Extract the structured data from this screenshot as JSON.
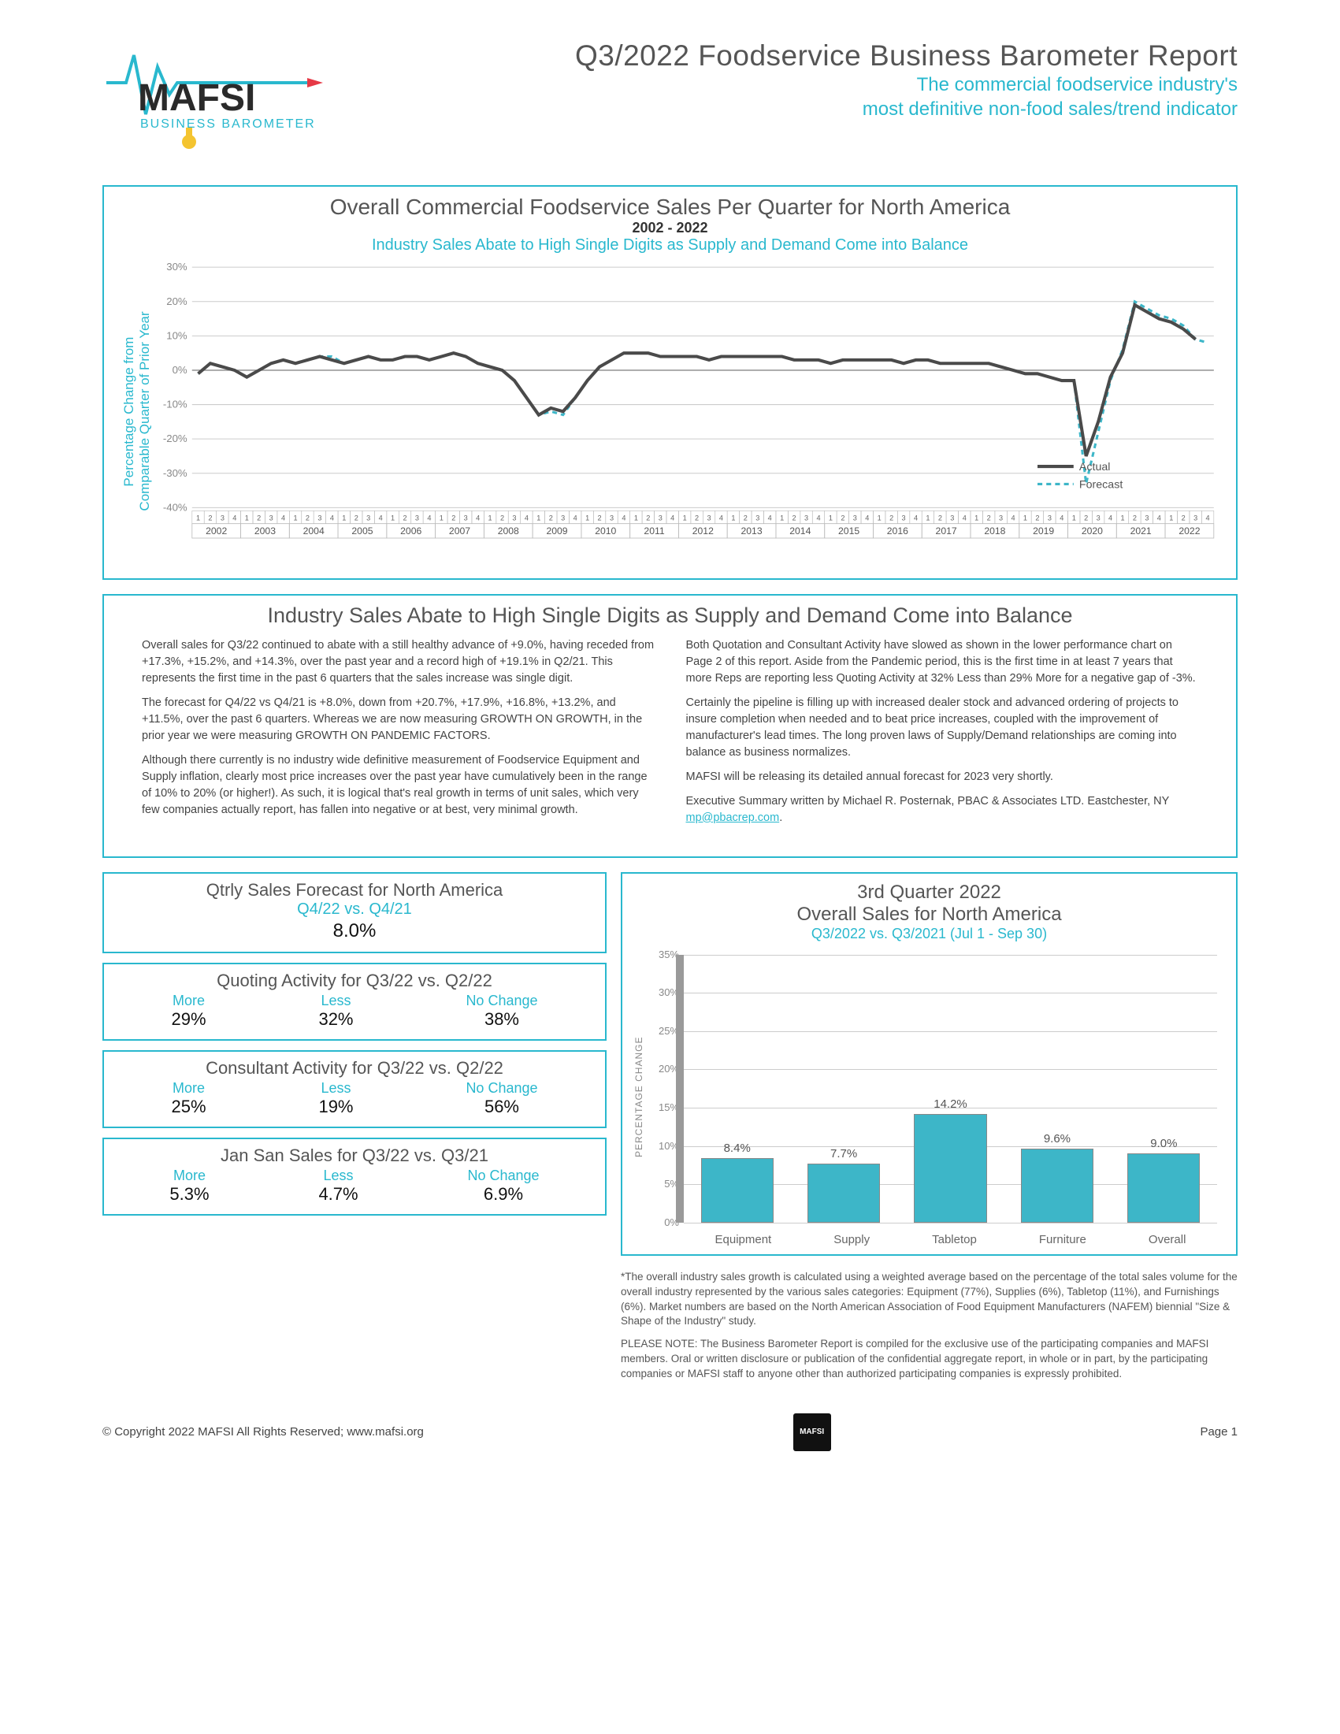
{
  "header": {
    "title": "Q3/2022 Foodservice Business Barometer Report",
    "subtitle1": "The commercial foodservice industry's",
    "subtitle2": "most definitive non-food sales/trend indicator",
    "logo_text": "MAFSI",
    "logo_sub": "BUSINESS BAROMETER"
  },
  "chart1": {
    "title": "Overall Commercial Foodservice Sales Per Quarter for North America",
    "years": "2002 - 2022",
    "subtitle": "Industry Sales Abate to High Single Digits as Supply and Demand Come into Balance",
    "ylabel": "Percentage Change from\nComparable Quarter of Prior Year",
    "ylim": [
      -40,
      30
    ],
    "ytick_step": 10,
    "year_range": [
      2002,
      2022
    ],
    "legend": {
      "actual": "Actual",
      "forecast": "Forecast"
    },
    "colors": {
      "actual": "#4a4a4a",
      "forecast": "#3db6c8",
      "grid": "#cccccc",
      "axis": "#888888"
    },
    "line_width": {
      "actual": 4,
      "forecast": 3
    },
    "forecast_dash": "6,5",
    "actual": [
      -1,
      2,
      1,
      0,
      -2,
      0,
      2,
      3,
      2,
      3,
      4,
      3,
      2,
      3,
      4,
      3,
      3,
      4,
      4,
      3,
      4,
      5,
      4,
      2,
      1,
      0,
      -3,
      -8,
      -13,
      -11,
      -12,
      -8,
      -3,
      1,
      3,
      5,
      5,
      5,
      4,
      4,
      4,
      4,
      3,
      4,
      4,
      4,
      4,
      4,
      4,
      3,
      3,
      3,
      2,
      3,
      3,
      3,
      3,
      3,
      2,
      3,
      3,
      2,
      2,
      2,
      2,
      2,
      1,
      0,
      -1,
      -1,
      -2,
      -3,
      -3,
      -25,
      -15,
      -2,
      5,
      19,
      17,
      15,
      14,
      12,
      9
    ],
    "forecast": [
      -1,
      2,
      1,
      0,
      -2,
      0,
      2,
      3,
      2,
      3,
      4,
      4,
      2,
      3,
      4,
      3,
      3,
      4,
      4,
      3,
      4,
      5,
      4,
      2,
      1,
      0,
      -3,
      -8,
      -13,
      -12,
      -13,
      -8,
      -3,
      1,
      3,
      5,
      5,
      5,
      4,
      4,
      4,
      4,
      3,
      4,
      4,
      4,
      4,
      4,
      4,
      3,
      3,
      3,
      2,
      3,
      3,
      3,
      3,
      3,
      2,
      3,
      3,
      2,
      2,
      2,
      2,
      2,
      1,
      0,
      -1,
      -1,
      -2,
      -3,
      -3,
      -33,
      -18,
      -3,
      6,
      20,
      18,
      16,
      15,
      13,
      9,
      8
    ]
  },
  "narrative": {
    "heading": "Industry Sales Abate to High Single Digits as Supply and Demand Come into Balance",
    "left": [
      "Overall sales for Q3/22 continued to abate with a still healthy advance of +9.0%, having receded from +17.3%, +15.2%, and +14.3%, over the past year and a record high of +19.1% in Q2/21.  This represents the first time in the past 6 quarters that the sales increase was single digit.",
      "The forecast for Q4/22 vs Q4/21 is +8.0%, down from +20.7%, +17.9%, +16.8%, +13.2%, and +11.5%, over the past 6 quarters. Whereas we are now measuring GROWTH ON GROWTH, in the prior year we were measuring GROWTH ON PANDEMIC FACTORS.",
      "Although there currently is no industry wide definitive measurement of Foodservice Equipment and Supply inflation, clearly most price increases over the past year have cumulatively been in the range of 10% to 20% (or higher!). As such, it is logical that's real growth in terms of unit sales, which very few companies actually report, has fallen into negative or at best, very minimal growth."
    ],
    "right": [
      "Both Quotation and Consultant Activity have slowed as shown in the lower performance chart on Page 2 of this report. Aside from the Pandemic period, this is the first time in at least 7 years that more Reps are reporting less Quoting Activity at 32% Less than 29% More for a negative gap of -3%.",
      "Certainly the pipeline is filling up with increased dealer stock and advanced ordering of projects to insure completion when needed and to beat price increases, coupled with the improvement of manufacturer's lead times.  The long proven laws of Supply/Demand relationships are coming into balance as business normalizes.",
      "MAFSI will be releasing its detailed annual forecast for 2023 very shortly.",
      "Executive Summary written by Michael R. Posternak, PBAC & Associates LTD. Eastchester, NY mp@pbacrep.com."
    ]
  },
  "mini": {
    "forecast": {
      "title": "Qtrly Sales Forecast for North America",
      "sub": "Q4/22 vs. Q4/21",
      "value": "8.0%"
    },
    "quoting": {
      "title": "Quoting Activity for Q3/22 vs. Q2/22",
      "labels": [
        "More",
        "Less",
        "No Change"
      ],
      "values": [
        "29%",
        "32%",
        "38%"
      ]
    },
    "consultant": {
      "title": "Consultant Activity for Q3/22 vs. Q2/22",
      "labels": [
        "More",
        "Less",
        "No Change"
      ],
      "values": [
        "25%",
        "19%",
        "56%"
      ]
    },
    "jansan": {
      "title": "Jan San Sales for Q3/22 vs. Q3/21",
      "labels": [
        "More",
        "Less",
        "No Change"
      ],
      "values": [
        "5.3%",
        "4.7%",
        "6.9%"
      ]
    }
  },
  "barchart": {
    "title1": "3rd Quarter 2022",
    "title2": "Overall Sales for North America",
    "sub": "Q3/2022 vs. Q3/2021 (Jul 1 - Sep 30)",
    "ylabel": "PERCENTAGE CHANGE",
    "ylim": [
      0,
      35
    ],
    "ytick_step": 5,
    "categories": [
      "Equipment",
      "Supply",
      "Tabletop",
      "Furniture",
      "Overall"
    ],
    "values": [
      8.4,
      7.7,
      14.2,
      9.6,
      9.0
    ],
    "labels": [
      "8.4%",
      "7.7%",
      "14.2%",
      "9.6%",
      "9.0%"
    ],
    "bar_color": "#3db6c8",
    "bar_border": "#888888",
    "grid_color": "#cccccc",
    "background": "#ffffff"
  },
  "footnote": {
    "p1": "*The overall industry sales growth is calculated using a weighted average based on the percentage of the total sales volume for the overall industry represented by the various sales categories: Equipment (77%), Supplies (6%), Tabletop (11%), and Furnishings (6%). Market numbers are based on the North American Association of Food Equipment Manufacturers (NAFEM) biennial \"Size & Shape of the Industry\" study.",
    "p2": "PLEASE NOTE:  The Business Barometer Report is compiled for the exclusive use of the participating companies and MAFSI members.  Oral or written disclosure or publication of the confidential aggregate report, in whole or in part, by the participating companies or MAFSI staff to anyone other than authorized participating companies is expressly prohibited."
  },
  "footer": {
    "copyright": "© Copyright 2022 MAFSI All Rights Reserved; www.mafsi.org",
    "page": "Page 1",
    "logo": "WE ARE\nMAFSI"
  }
}
